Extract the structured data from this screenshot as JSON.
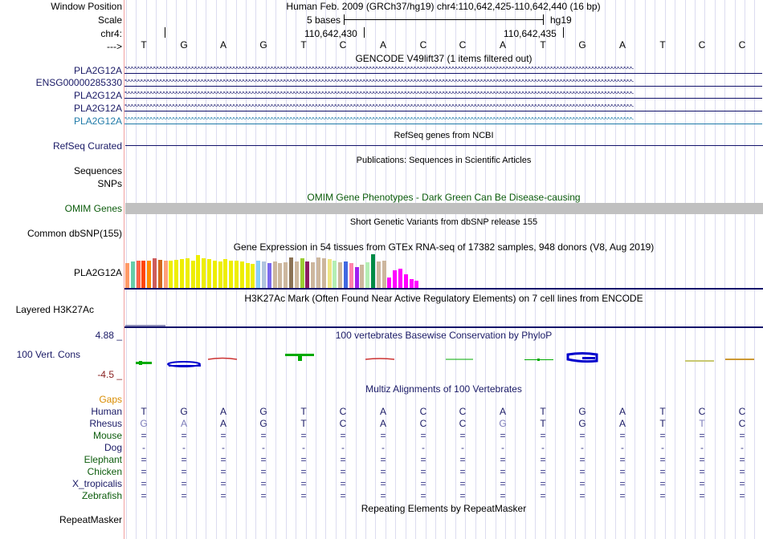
{
  "labels": {
    "window_position": "Window Position",
    "scale": "Scale",
    "chrom": "chr4:",
    "strand": "--->",
    "gencode_genes": [
      "PLA2G12A",
      "ENSG00000285330",
      "PLA2G12A",
      "PLA2G12A",
      "PLA2G12A"
    ],
    "refseq": "RefSeq Curated",
    "sequences": "Sequences",
    "snps": "SNPs",
    "omim": "OMIM Genes",
    "dbsnp": "Common dbSNP(155)",
    "gtex": "PLA2G12A",
    "h3k27ac": "Layered H3K27Ac",
    "cons_max": "4.88 _",
    "cons": "100 Vert. Cons",
    "cons_min": "-4.5 _",
    "gaps": "Gaps",
    "species": [
      "Human",
      "Rhesus",
      "Mouse",
      "Dog",
      "Elephant",
      "Chicken",
      "X_tropicalis",
      "Zebrafish"
    ],
    "repeatmasker": "RepeatMasker"
  },
  "ruler": {
    "assembly_text": "Human Feb. 2009 (GRCh37/hg19)   chr4:110,642,425-110,642,440 (16 bp)",
    "scale_text": "5 bases",
    "scale_db": "hg19",
    "coord1": "110,642,430",
    "coord2": "110,642,435"
  },
  "sequence": [
    "T",
    "G",
    "A",
    "G",
    "T",
    "C",
    "A",
    "C",
    "C",
    "A",
    "T",
    "G",
    "A",
    "T",
    "C",
    "C"
  ],
  "tracks": {
    "gencode_title": "GENCODE V49lift37 (1 items filtered out)",
    "refseq_title": "RefSeq genes from NCBI",
    "pubs_title": "Publications: Sequences in Scientific Articles",
    "omim_title": "OMIM Gene Phenotypes - Dark Green Can Be Disease-causing",
    "dbsnp_title": "Short Genetic Variants from dbSNP release 155",
    "gtex_title": "Gene Expression in 54 tissues from GTEx RNA-seq of 17382 samples, 948 donors (V8, Aug 2019)",
    "h3k27ac_title": "H3K27Ac Mark (Often Found Near Active Regulatory Elements) on 7 cell lines from ENCODE",
    "cons_title": "100 vertebrates Basewise Conservation by PhyloP",
    "multiz_title": "Multiz Alignments of 100 Vertebrates",
    "rmsk_title": "Repeating Elements by RepeatMasker"
  },
  "alignment": {
    "human": [
      "T",
      "G",
      "A",
      "G",
      "T",
      "C",
      "A",
      "C",
      "C",
      "A",
      "T",
      "G",
      "A",
      "T",
      "C",
      "C"
    ],
    "rhesus": [
      "G",
      "A",
      "A",
      "G",
      "T",
      "C",
      "A",
      "C",
      "C",
      "G",
      "T",
      "G",
      "A",
      "T",
      "T",
      "C"
    ],
    "rhesus_mismatch": [
      true,
      true,
      false,
      false,
      false,
      false,
      false,
      false,
      false,
      true,
      false,
      false,
      false,
      false,
      true,
      false
    ],
    "mouse": "=",
    "dog": "-",
    "elephant": "=",
    "chicken": "=",
    "x_tropicalis": "=",
    "zebrafish": "="
  },
  "gtex_values": [
    0.72,
    0.76,
    0.78,
    0.8,
    0.78,
    0.86,
    0.82,
    0.8,
    0.8,
    0.82,
    0.84,
    0.86,
    0.8,
    0.96,
    0.86,
    0.84,
    0.78,
    0.76,
    0.84,
    0.8,
    0.78,
    0.76,
    0.72,
    0.7,
    0.78,
    0.76,
    0.72,
    0.76,
    0.72,
    0.74,
    0.88,
    0.76,
    0.86,
    0.76,
    0.74,
    0.88,
    0.86,
    0.84,
    0.8,
    0.74,
    0.76,
    0.72,
    0.6,
    0.68,
    0.74,
    0.98,
    0.76,
    0.78,
    0.3,
    0.5,
    0.55,
    0.4,
    0.25,
    0.2
  ],
  "gtex_colors": [
    "#ff9966",
    "#66cdaa",
    "#ff6347",
    "#ff4500",
    "#ff8c00",
    "#cd5c5c",
    "#d2691e",
    "#ffa07a",
    "#eeee00",
    "#eeee00",
    "#eeee00",
    "#eeee00",
    "#eeee00",
    "#eeee00",
    "#eeee00",
    "#eeee00",
    "#eeee00",
    "#eeee00",
    "#eeee00",
    "#eeee00",
    "#eeee00",
    "#eeee00",
    "#eeee00",
    "#eeee00",
    "#87cefa",
    "#b0c4de",
    "#7b68ee",
    "#cdb79e",
    "#cdb79e",
    "#cdb79e",
    "#8b7355",
    "#cdb79e",
    "#9acd32",
    "#8b1c62",
    "#cdb79e",
    "#cdb79e",
    "#cdb79e",
    "#eee685",
    "#b4eeb4",
    "#cdb79e",
    "#4169e1",
    "#ff82ab",
    "#a020f0",
    "#cdb79e",
    "#b4eeb4",
    "#008b45",
    "#cdb79e",
    "#cdb79e",
    "#ff00ff",
    "#ff00ff",
    "#ff00ff",
    "#ff00ff",
    "#ff00ff",
    "#ff00ff"
  ],
  "colors": {
    "navy": "#1a1a66",
    "omim_gray": "#c0c0c0",
    "cons_blue": "#0000cc",
    "cons_green": "#00aa00",
    "cons_red": "#cc3333"
  }
}
